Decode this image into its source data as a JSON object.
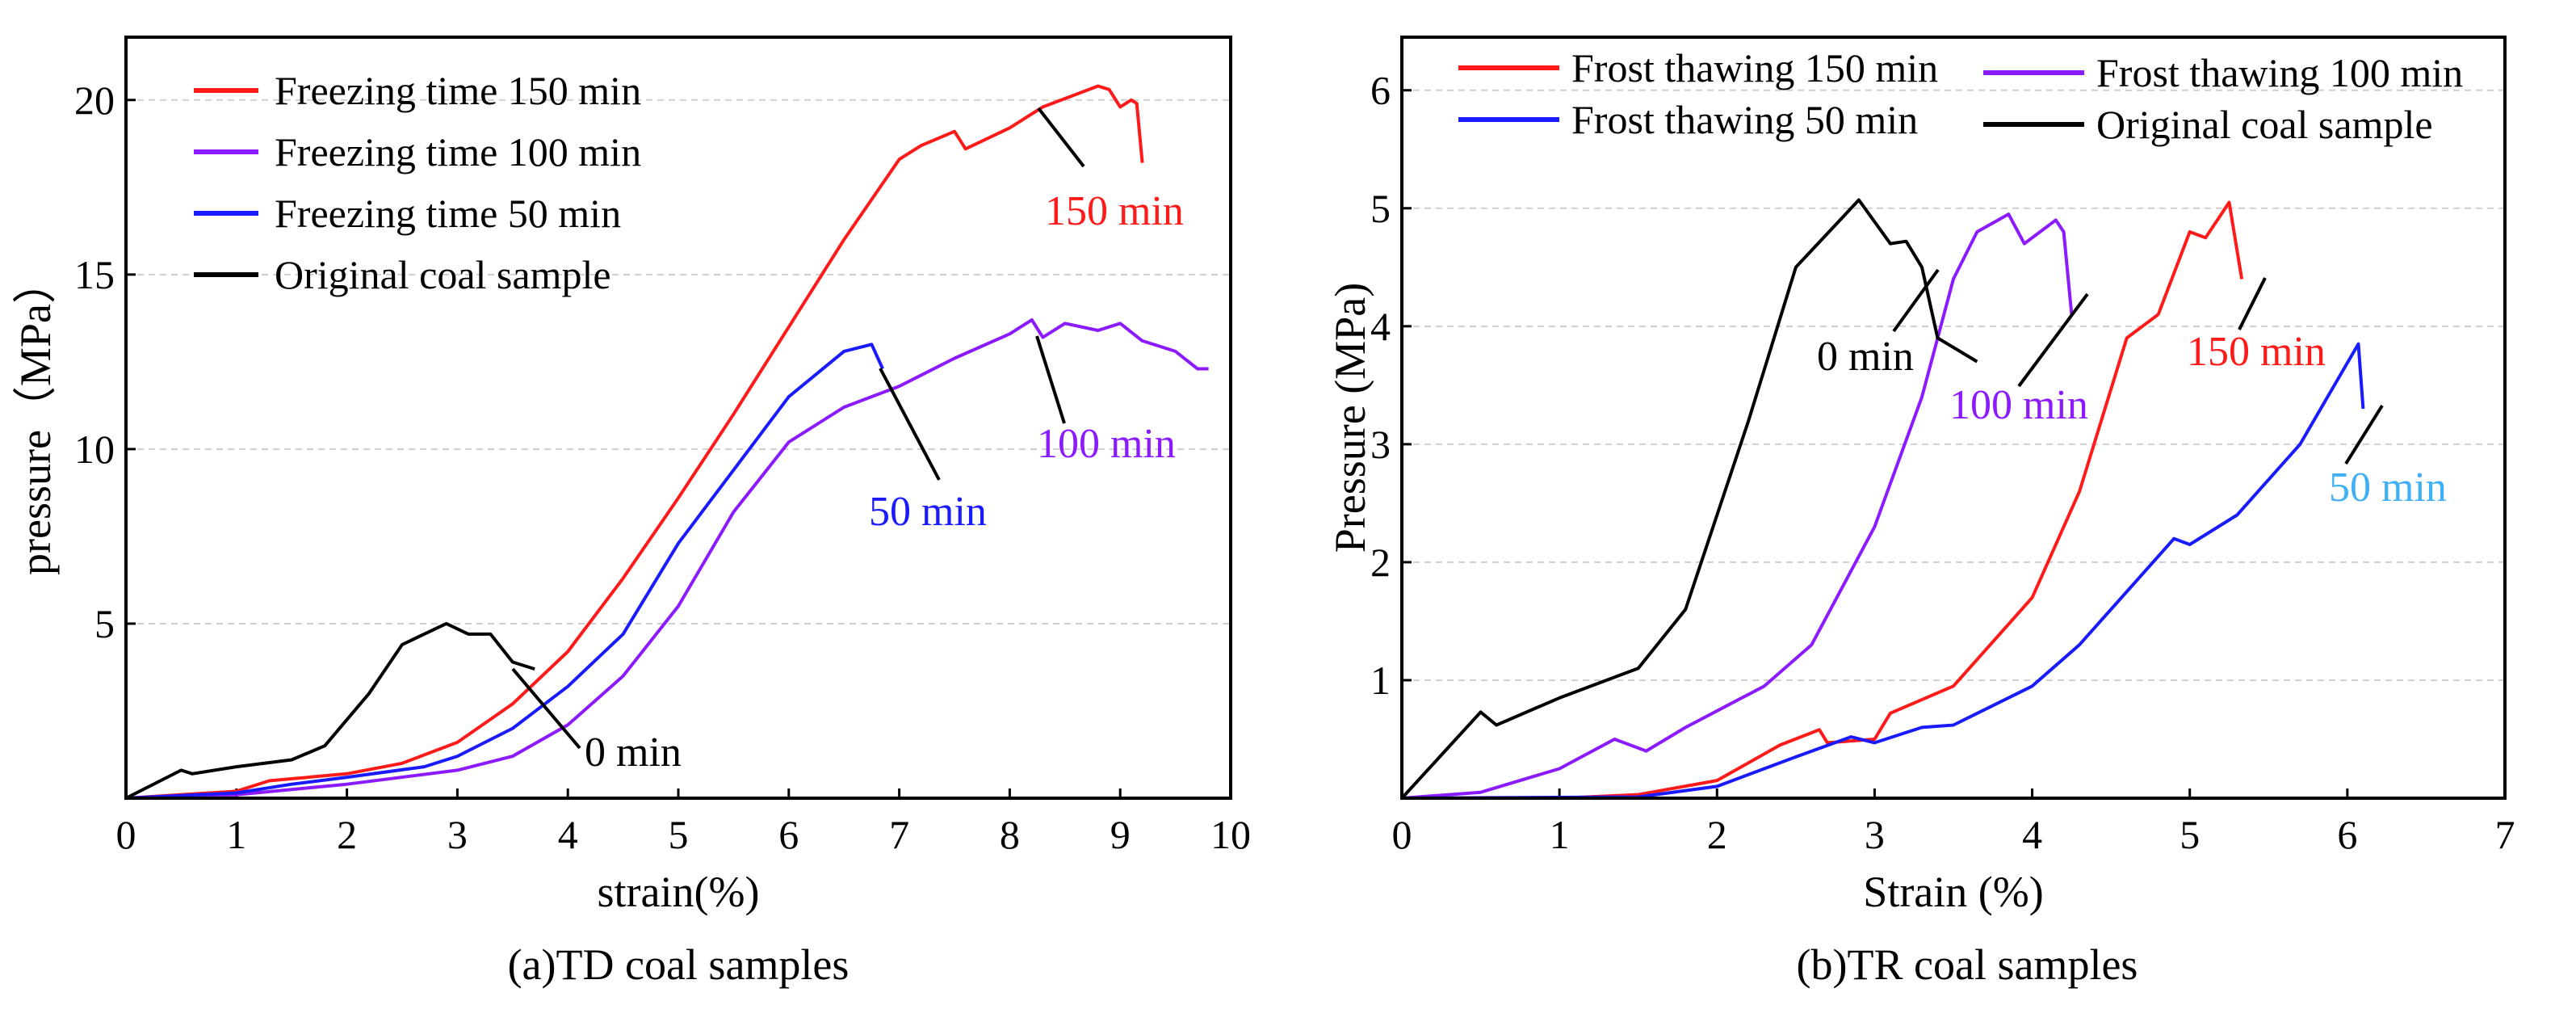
{
  "chart_data": [
    {
      "type": "line",
      "caption": "(a)TD coal samples",
      "xlabel": "strain(%)",
      "ylabel": "pressure（MPa）",
      "xlim": [
        0,
        10
      ],
      "ylim": [
        0,
        21.8
      ],
      "xticks": [
        "0",
        "1",
        "2",
        "3",
        "4",
        "5",
        "6",
        "7",
        "8",
        "9",
        "10"
      ],
      "yticks": [
        "5",
        "10",
        "15",
        "20"
      ],
      "ytick_values": [
        5,
        10,
        15,
        20
      ],
      "grid": true,
      "legend_position": "top-left",
      "series": [
        {
          "name": "Freezing time 150 min",
          "color": "#ff1a1a",
          "points": [
            [
              0,
              0
            ],
            [
              1,
              0.2
            ],
            [
              1.3,
              0.5
            ],
            [
              2,
              0.7
            ],
            [
              2.5,
              1.0
            ],
            [
              3,
              1.6
            ],
            [
              3.5,
              2.7
            ],
            [
              4,
              4.2
            ],
            [
              4.5,
              6.3
            ],
            [
              5,
              8.6
            ],
            [
              5.5,
              11
            ],
            [
              6,
              13.5
            ],
            [
              6.5,
              16
            ],
            [
              7,
              18.3
            ],
            [
              7.2,
              18.7
            ],
            [
              7.5,
              19.1
            ],
            [
              7.6,
              18.6
            ],
            [
              8,
              19.2
            ],
            [
              8.3,
              19.8
            ],
            [
              8.8,
              20.4
            ],
            [
              8.9,
              20.3
            ],
            [
              9,
              19.8
            ],
            [
              9.1,
              20.0
            ],
            [
              9.15,
              19.9
            ],
            [
              9.2,
              18.2
            ]
          ]
        },
        {
          "name": "Freezing time 100 min",
          "color": "#8c1aff",
          "points": [
            [
              0,
              0
            ],
            [
              1,
              0.1
            ],
            [
              2,
              0.4
            ],
            [
              3,
              0.8
            ],
            [
              3.5,
              1.2
            ],
            [
              4,
              2.1
            ],
            [
              4.5,
              3.5
            ],
            [
              5,
              5.5
            ],
            [
              5.5,
              8.2
            ],
            [
              6,
              10.2
            ],
            [
              6.5,
              11.2
            ],
            [
              7,
              11.8
            ],
            [
              7.5,
              12.6
            ],
            [
              8,
              13.3
            ],
            [
              8.2,
              13.7
            ],
            [
              8.3,
              13.2
            ],
            [
              8.5,
              13.6
            ],
            [
              8.8,
              13.4
            ],
            [
              9,
              13.6
            ],
            [
              9.2,
              13.1
            ],
            [
              9.5,
              12.8
            ],
            [
              9.7,
              12.3
            ],
            [
              9.8,
              12.3
            ]
          ]
        },
        {
          "name": "Freezing time 50 min",
          "color": "#1a1aff",
          "points": [
            [
              0,
              0
            ],
            [
              1,
              0.15
            ],
            [
              1.5,
              0.4
            ],
            [
              2,
              0.6
            ],
            [
              2.7,
              0.9
            ],
            [
              3,
              1.2
            ],
            [
              3.5,
              2.0
            ],
            [
              4,
              3.2
            ],
            [
              4.5,
              4.7
            ],
            [
              5,
              7.3
            ],
            [
              5.5,
              9.4
            ],
            [
              6,
              11.5
            ],
            [
              6.5,
              12.8
            ],
            [
              6.75,
              13.0
            ],
            [
              6.85,
              12.3
            ]
          ]
        },
        {
          "name": "Original coal sample",
          "color": "#000000",
          "points": [
            [
              0,
              0
            ],
            [
              0.5,
              0.8
            ],
            [
              0.6,
              0.7
            ],
            [
              1,
              0.9
            ],
            [
              1.5,
              1.1
            ],
            [
              1.8,
              1.5
            ],
            [
              2.2,
              3.0
            ],
            [
              2.5,
              4.4
            ],
            [
              2.9,
              5.0
            ],
            [
              3.1,
              4.7
            ],
            [
              3.3,
              4.7
            ],
            [
              3.5,
              3.9
            ],
            [
              3.7,
              3.7
            ]
          ]
        }
      ],
      "annotations": [
        {
          "text": "150 min",
          "color": "#ff1a1a"
        },
        {
          "text": "100 min",
          "color": "#8c1aff"
        },
        {
          "text": "50 min",
          "color": "#1a1aff"
        },
        {
          "text": "0 min",
          "color": "#000000"
        }
      ]
    },
    {
      "type": "line",
      "caption": "(b)TR coal samples",
      "xlabel": "Strain (%)",
      "ylabel": "Pressure (MPa)",
      "xlim": [
        0,
        7
      ],
      "ylim": [
        0,
        6.45
      ],
      "xticks": [
        "0",
        "1",
        "2",
        "3",
        "4",
        "5",
        "6",
        "7"
      ],
      "yticks": [
        "1",
        "2",
        "3",
        "4",
        "5",
        "6"
      ],
      "ytick_values": [
        1,
        2,
        3,
        4,
        5,
        6
      ],
      "grid": true,
      "legend_position": "top",
      "series": [
        {
          "name": "Frost thawing 150 min",
          "color": "#ff1a1a",
          "points": [
            [
              0,
              0
            ],
            [
              1,
              0
            ],
            [
              1.5,
              0.03
            ],
            [
              2,
              0.15
            ],
            [
              2.4,
              0.45
            ],
            [
              2.65,
              0.58
            ],
            [
              2.7,
              0.47
            ],
            [
              3,
              0.5
            ],
            [
              3.1,
              0.72
            ],
            [
              3.5,
              0.95
            ],
            [
              4,
              1.7
            ],
            [
              4.3,
              2.6
            ],
            [
              4.6,
              3.9
            ],
            [
              4.8,
              4.1
            ],
            [
              5,
              4.8
            ],
            [
              5.1,
              4.75
            ],
            [
              5.25,
              5.05
            ],
            [
              5.33,
              4.4
            ]
          ]
        },
        {
          "name": "Frost thawing 100 min",
          "color": "#8c1aff",
          "points": [
            [
              0,
              0
            ],
            [
              0.5,
              0.05
            ],
            [
              1,
              0.25
            ],
            [
              1.35,
              0.5
            ],
            [
              1.55,
              0.4
            ],
            [
              1.8,
              0.6
            ],
            [
              2.3,
              0.95
            ],
            [
              2.6,
              1.3
            ],
            [
              3,
              2.3
            ],
            [
              3.3,
              3.4
            ],
            [
              3.5,
              4.4
            ],
            [
              3.65,
              4.8
            ],
            [
              3.85,
              4.95
            ],
            [
              3.95,
              4.7
            ],
            [
              4.15,
              4.9
            ],
            [
              4.2,
              4.8
            ],
            [
              4.25,
              4.1
            ]
          ]
        },
        {
          "name": "Frost thawing 50 min",
          "color": "#1a1aff",
          "points": [
            [
              0,
              0
            ],
            [
              1.5,
              0.01
            ],
            [
              2,
              0.1
            ],
            [
              2.5,
              0.35
            ],
            [
              2.85,
              0.52
            ],
            [
              3,
              0.47
            ],
            [
              3.3,
              0.6
            ],
            [
              3.5,
              0.62
            ],
            [
              4,
              0.95
            ],
            [
              4.3,
              1.3
            ],
            [
              4.9,
              2.2
            ],
            [
              5,
              2.15
            ],
            [
              5.3,
              2.4
            ],
            [
              5.7,
              3.0
            ],
            [
              6.07,
              3.85
            ],
            [
              6.1,
              3.3
            ]
          ]
        },
        {
          "name": "Original coal sample",
          "color": "#000000",
          "points": [
            [
              0,
              0
            ],
            [
              0.5,
              0.73
            ],
            [
              0.6,
              0.62
            ],
            [
              1,
              0.85
            ],
            [
              1.5,
              1.1
            ],
            [
              1.8,
              1.6
            ],
            [
              2.2,
              3.2
            ],
            [
              2.5,
              4.5
            ],
            [
              2.9,
              5.07
            ],
            [
              3.1,
              4.7
            ],
            [
              3.2,
              4.72
            ],
            [
              3.3,
              4.5
            ],
            [
              3.4,
              3.9
            ],
            [
              3.65,
              3.7
            ]
          ]
        }
      ],
      "annotations": [
        {
          "text": "0 min",
          "color": "#000000"
        },
        {
          "text": "100 min",
          "color": "#8c1aff"
        },
        {
          "text": "150 min",
          "color": "#ff1a1a"
        },
        {
          "text": "50 min",
          "color": "#3fb0f5"
        }
      ]
    }
  ]
}
